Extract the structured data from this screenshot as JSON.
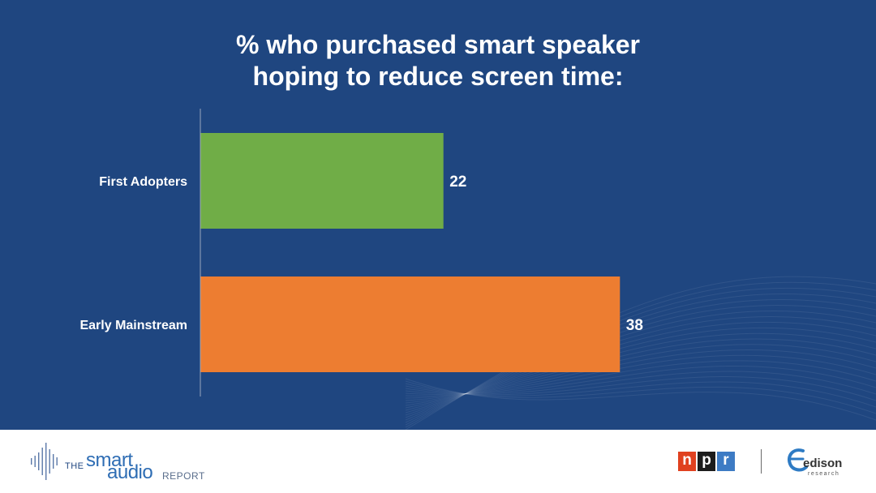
{
  "chart_data": {
    "type": "bar",
    "orientation": "horizontal",
    "title": "% who purchased smart speaker hoping to reduce screen time:",
    "title_lines": [
      "% who purchased smart speaker",
      "hoping to reduce screen time:"
    ],
    "categories": [
      "First Adopters",
      "Early Mainstream"
    ],
    "values": [
      22,
      38
    ],
    "data_labels": [
      "22",
      "38"
    ],
    "bar_colors": [
      "#70ad47",
      "#ed7d31"
    ],
    "xlim": [
      0,
      100
    ],
    "grid": false,
    "legend": "none"
  },
  "colors": {
    "background": "#1f4680",
    "text": "#ffffff",
    "axis": "#9aa7bb"
  },
  "footer": {
    "brand": {
      "the": "THE",
      "smart": "smart",
      "audio": "audio",
      "report": "REPORT"
    },
    "npr_letters": [
      "n",
      "p",
      "r"
    ],
    "npr_colors": [
      "#e0411f",
      "#1c1c1c",
      "#3d7bc4"
    ],
    "edison": {
      "word": "edison",
      "sub": "research"
    }
  }
}
